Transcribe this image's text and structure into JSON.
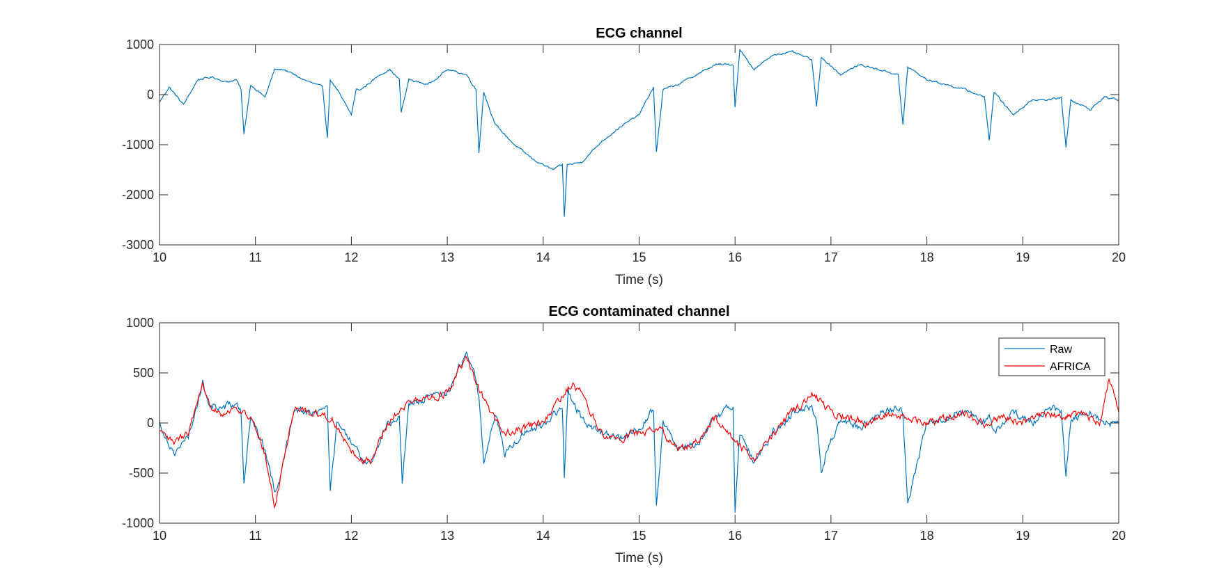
{
  "chart_data": [
    {
      "type": "line",
      "title": "ECG channel",
      "xlabel": "Time (s)",
      "ylabel": "",
      "xlim": [
        10,
        20
      ],
      "ylim": [
        -3000,
        1000
      ],
      "xticks": [
        10,
        11,
        12,
        13,
        14,
        15,
        16,
        17,
        18,
        19,
        20
      ],
      "xtick_labels": [
        "10",
        "11",
        "12",
        "13",
        "14",
        "15",
        "16",
        "17",
        "18",
        "19",
        "20"
      ],
      "yticks": [
        -3000,
        -2000,
        -1000,
        0,
        1000
      ],
      "ytick_labels": [
        "-3000",
        "-2000",
        "-1000",
        "0",
        "1000"
      ],
      "grid": false,
      "legend": null,
      "series": [
        {
          "color": "#0072BD",
          "x": [
            10.0,
            10.1,
            10.25,
            10.4,
            10.55,
            10.7,
            10.8,
            10.85,
            10.88,
            10.95,
            11.1,
            11.2,
            11.3,
            11.5,
            11.7,
            11.75,
            11.78,
            11.85,
            12.0,
            12.05,
            12.1,
            12.3,
            12.4,
            12.5,
            12.52,
            12.6,
            12.8,
            13.0,
            13.2,
            13.3,
            13.33,
            13.38,
            13.5,
            13.7,
            13.9,
            14.1,
            14.2,
            14.22,
            14.25,
            14.4,
            14.6,
            14.8,
            15.0,
            15.15,
            15.18,
            15.25,
            15.4,
            15.6,
            15.8,
            15.98,
            16.0,
            16.05,
            16.2,
            16.4,
            16.6,
            16.8,
            16.85,
            16.9,
            17.1,
            17.3,
            17.5,
            17.7,
            17.75,
            17.8,
            18.0,
            18.2,
            18.4,
            18.6,
            18.65,
            18.7,
            18.9,
            19.1,
            19.3,
            19.4,
            19.45,
            19.5,
            19.7,
            19.85,
            20.0
          ],
          "y": [
            -150,
            150,
            -200,
            300,
            350,
            250,
            300,
            100,
            -800,
            200,
            -50,
            500,
            500,
            300,
            150,
            -850,
            300,
            100,
            -400,
            100,
            100,
            400,
            500,
            300,
            -350,
            300,
            200,
            500,
            400,
            100,
            -1150,
            50,
            -600,
            -1000,
            -1300,
            -1500,
            -1400,
            -2450,
            -1400,
            -1350,
            -950,
            -650,
            -400,
            150,
            -1150,
            100,
            200,
            400,
            600,
            600,
            -250,
            900,
            500,
            800,
            850,
            700,
            -250,
            750,
            400,
            600,
            500,
            400,
            -600,
            550,
            300,
            200,
            100,
            -50,
            -900,
            50,
            -400,
            -100,
            -100,
            -50,
            -1050,
            -100,
            -300,
            -50,
            -100
          ]
        }
      ]
    },
    {
      "type": "line",
      "title": "ECG contaminated channel",
      "xlabel": "Time (s)",
      "ylabel": "",
      "xlim": [
        10,
        20
      ],
      "ylim": [
        -1000,
        1000
      ],
      "xticks": [
        10,
        11,
        12,
        13,
        14,
        15,
        16,
        17,
        18,
        19,
        20
      ],
      "xtick_labels": [
        "10",
        "11",
        "12",
        "13",
        "14",
        "15",
        "16",
        "17",
        "18",
        "19",
        "20"
      ],
      "yticks": [
        -1000,
        -500,
        0,
        500,
        1000
      ],
      "ytick_labels": [
        "-1000",
        "-500",
        "0",
        "500",
        "1000"
      ],
      "grid": false,
      "legend": "top-right",
      "series": [
        {
          "name": "Raw",
          "color": "#0072BD",
          "x": [
            10.0,
            10.15,
            10.3,
            10.45,
            10.5,
            10.65,
            10.8,
            10.85,
            10.88,
            10.95,
            11.1,
            11.2,
            11.25,
            11.4,
            11.6,
            11.75,
            11.78,
            11.85,
            12.0,
            12.1,
            12.2,
            12.35,
            12.5,
            12.53,
            12.6,
            12.8,
            13.0,
            13.2,
            13.3,
            13.33,
            13.38,
            13.5,
            13.6,
            13.8,
            14.0,
            14.2,
            14.22,
            14.26,
            14.4,
            14.6,
            14.8,
            15.0,
            15.15,
            15.18,
            15.25,
            15.4,
            15.6,
            15.8,
            15.98,
            16.0,
            16.05,
            16.2,
            16.4,
            16.6,
            16.8,
            16.85,
            16.9,
            17.1,
            17.3,
            17.5,
            17.7,
            17.75,
            17.8,
            18.0,
            18.2,
            18.4,
            18.6,
            18.65,
            18.7,
            18.9,
            19.1,
            19.3,
            19.4,
            19.45,
            19.5,
            19.7,
            19.85,
            20.0
          ],
          "y": [
            0,
            -300,
            -150,
            400,
            200,
            150,
            200,
            100,
            -600,
            50,
            -250,
            -700,
            -600,
            150,
            100,
            150,
            -700,
            0,
            -200,
            -350,
            -400,
            -50,
            100,
            -600,
            200,
            250,
            300,
            700,
            450,
            250,
            -400,
            100,
            -300,
            -100,
            0,
            150,
            -550,
            300,
            50,
            -100,
            -150,
            -50,
            150,
            -850,
            0,
            -250,
            -200,
            50,
            200,
            -850,
            -100,
            -400,
            -100,
            100,
            150,
            50,
            -450,
            50,
            -50,
            100,
            150,
            100,
            -800,
            0,
            50,
            100,
            0,
            50,
            -100,
            100,
            0,
            150,
            100,
            -550,
            50,
            100,
            0,
            0
          ]
        },
        {
          "name": "AFRICA",
          "color": "#FF0000",
          "x": [
            10.0,
            10.15,
            10.3,
            10.45,
            10.5,
            10.65,
            10.8,
            10.95,
            11.1,
            11.2,
            11.25,
            11.4,
            11.6,
            11.8,
            12.0,
            12.1,
            12.2,
            12.35,
            12.5,
            12.6,
            12.8,
            13.0,
            13.2,
            13.3,
            13.45,
            13.6,
            13.8,
            14.0,
            14.3,
            14.4,
            14.6,
            14.8,
            15.0,
            15.2,
            15.4,
            15.6,
            15.8,
            16.0,
            16.2,
            16.4,
            16.6,
            16.8,
            17.0,
            17.2,
            17.4,
            17.6,
            17.8,
            18.0,
            18.2,
            18.4,
            18.6,
            18.8,
            19.0,
            19.2,
            19.4,
            19.6,
            19.8,
            19.9,
            20.0
          ],
          "y": [
            -100,
            -200,
            -100,
            350,
            200,
            100,
            150,
            50,
            -300,
            -850,
            -600,
            150,
            100,
            50,
            -300,
            -350,
            -400,
            -50,
            150,
            200,
            250,
            300,
            650,
            400,
            100,
            -100,
            -50,
            0,
            400,
            300,
            -100,
            -150,
            -100,
            -50,
            -250,
            -200,
            50,
            -200,
            -350,
            -100,
            100,
            300,
            100,
            50,
            0,
            100,
            50,
            0,
            50,
            100,
            0,
            50,
            0,
            100,
            50,
            100,
            0,
            450,
            100
          ]
        }
      ]
    }
  ]
}
